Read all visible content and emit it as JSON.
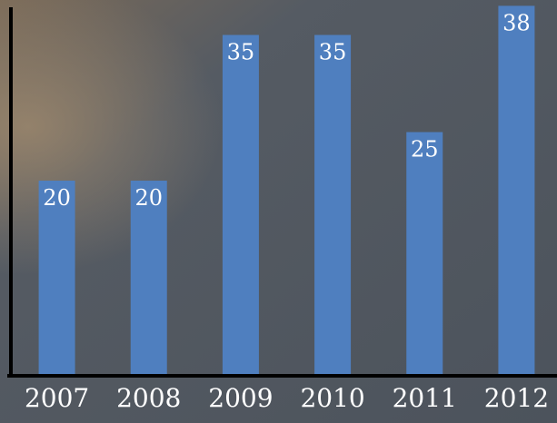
{
  "chart_data": {
    "type": "bar",
    "categories": [
      "2007",
      "2008",
      "2009",
      "2010",
      "2011",
      "2012"
    ],
    "values": [
      20,
      20,
      35,
      35,
      25,
      38
    ],
    "color": "#4f7fbf",
    "ylim": [
      0,
      38.6
    ]
  }
}
